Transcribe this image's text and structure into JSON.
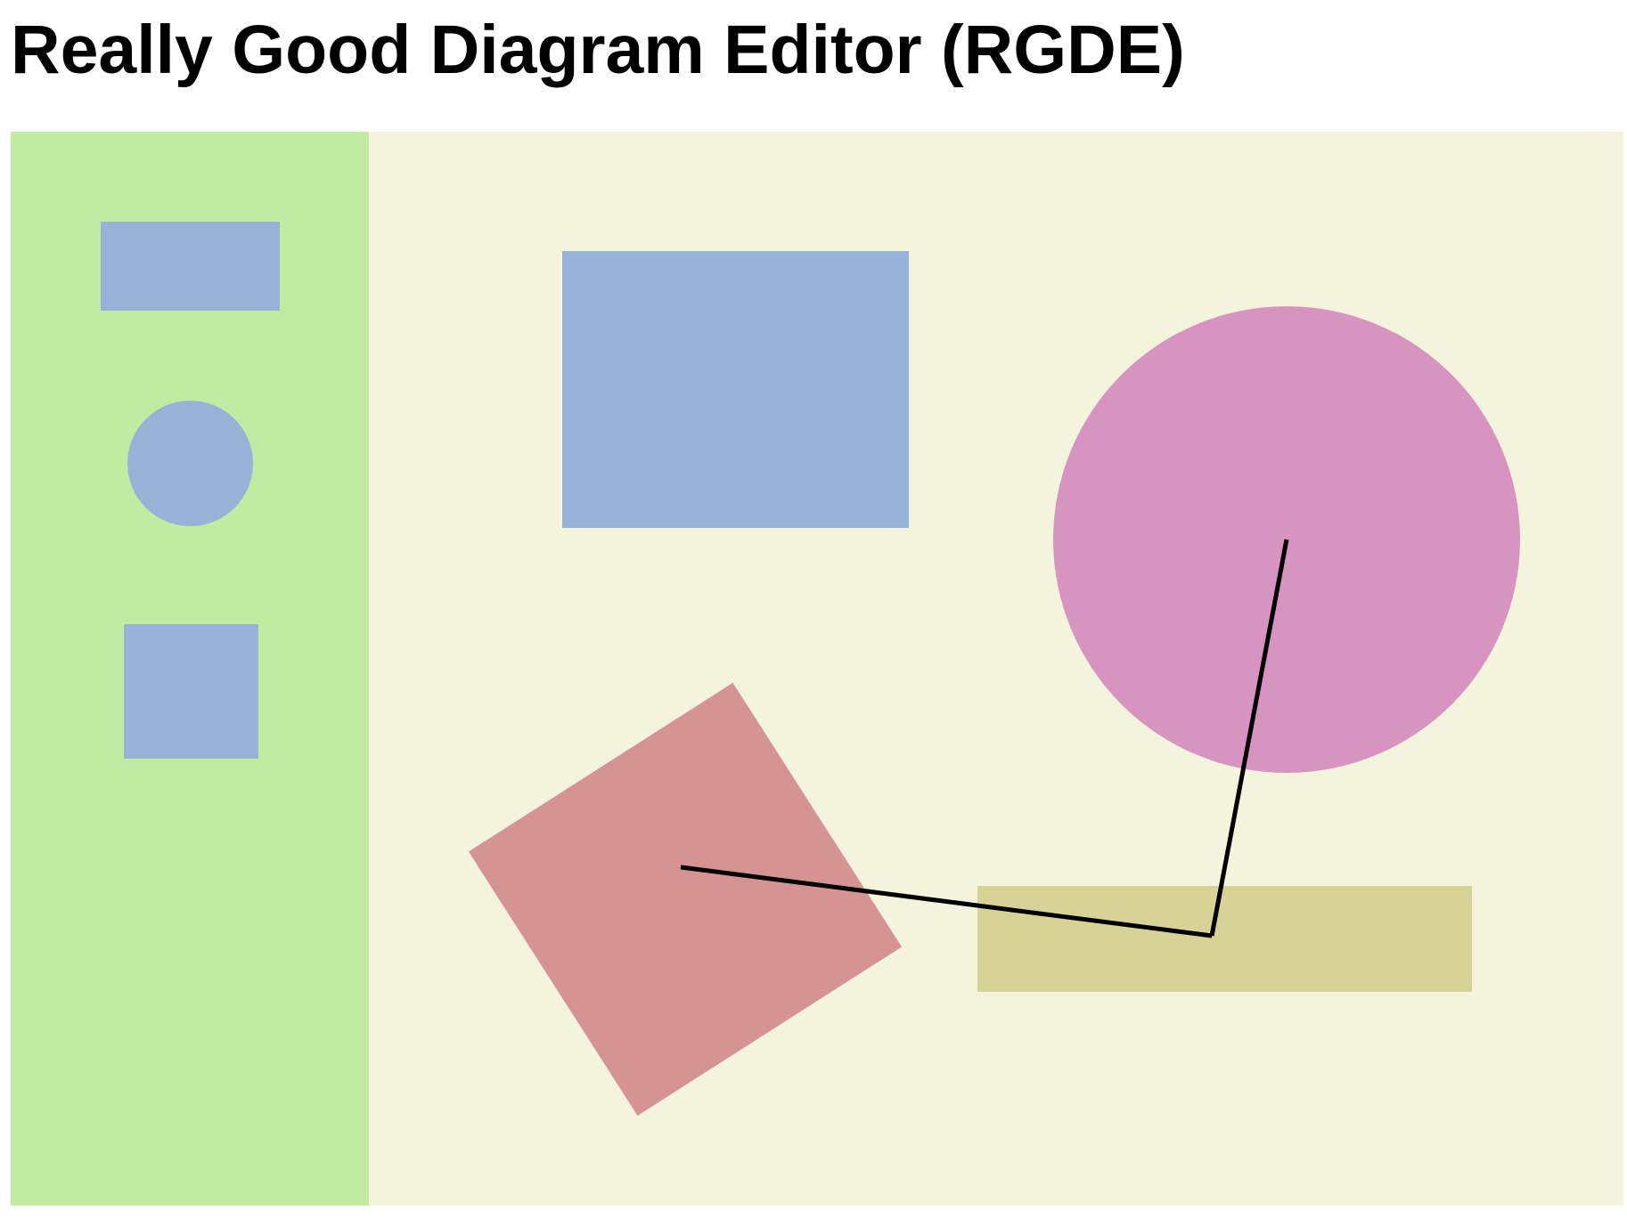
{
  "app": {
    "title": "Really Good Diagram Editor (RGDE)"
  },
  "colors": {
    "palette_background": "#bfeca0",
    "canvas_background": "#f4f4dd",
    "blue_shape": "#96b2d7",
    "pink_shape": "#d894c0",
    "rose_shape": "#d69394",
    "olive_shape": "#d7d396",
    "connector_line": "#000000"
  },
  "palette": {
    "tools": [
      {
        "shape": "rectangle",
        "fill": "#96b2d7"
      },
      {
        "shape": "circle",
        "fill": "#96b2d7"
      },
      {
        "shape": "square",
        "fill": "#96b2d7"
      }
    ]
  },
  "canvas": {
    "shapes": [
      {
        "shape": "rectangle",
        "fill": "#96b2d7"
      },
      {
        "shape": "circle",
        "fill": "#d894c0"
      },
      {
        "shape": "rectangle",
        "fill": "#d7d396"
      },
      {
        "shape": "rotated-square",
        "fill": "#d69394"
      }
    ],
    "connectors": [
      {
        "from": "rotated-square",
        "to": "olive-rectangle"
      },
      {
        "from": "olive-rectangle",
        "to": "pink-circle"
      }
    ]
  }
}
